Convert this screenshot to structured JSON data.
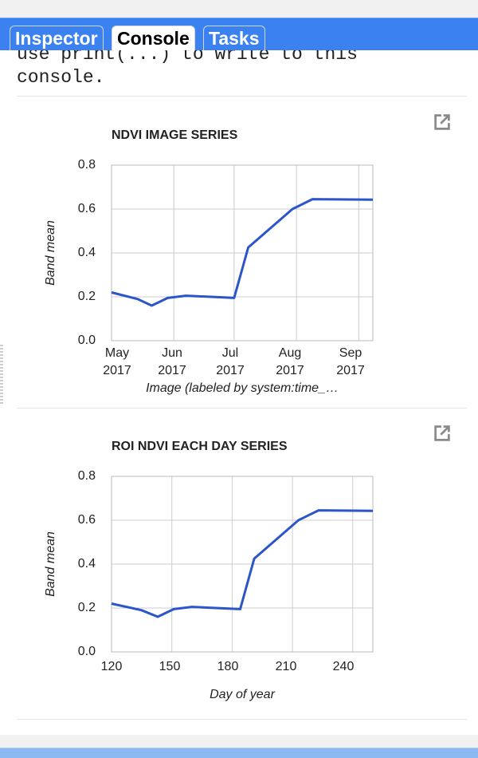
{
  "tabs": [
    {
      "label": "Inspector",
      "active": false
    },
    {
      "label": "Console",
      "active": true
    },
    {
      "label": "Tasks",
      "active": false
    }
  ],
  "console": {
    "lines": [
      "use print(...) to write to this",
      "console."
    ]
  },
  "colors": {
    "tab_bar": "#3b82f0",
    "series_line": "#2b55c8",
    "grid": "#cccccc"
  },
  "popout_icon": "open-in-new-icon",
  "chart_data": [
    {
      "type": "line",
      "title": "NDVI IMAGE SERIES",
      "ylabel": "Band mean",
      "xlabel": "Image (labeled by system:time_…",
      "ylim": [
        0,
        0.8
      ],
      "yticks": [
        "0.0",
        "0.2",
        "0.4",
        "0.6",
        "0.8"
      ],
      "xticks": [
        {
          "month": "May",
          "year": "2017"
        },
        {
          "month": "Jun",
          "year": "2017"
        },
        {
          "month": "Jul",
          "year": "2017"
        },
        {
          "month": "Aug",
          "year": "2017"
        },
        {
          "month": "Sep",
          "year": "2017"
        }
      ],
      "x_range_days": [
        0,
        130
      ],
      "x_tick_days": [
        0,
        31,
        61,
        92,
        123
      ],
      "series": [
        {
          "name": "Band mean",
          "x_days": [
            -2,
            13,
            20,
            28,
            37,
            61,
            68,
            90,
            100,
            130
          ],
          "values": [
            0.22,
            0.19,
            0.16,
            0.195,
            0.205,
            0.195,
            0.425,
            0.6,
            0.645,
            0.643
          ]
        }
      ]
    },
    {
      "type": "line",
      "title": "ROI NDVI EACH DAY SERIES",
      "ylabel": "Band mean",
      "xlabel": "Day of year",
      "ylim": [
        0,
        0.8
      ],
      "yticks": [
        "0.0",
        "0.2",
        "0.4",
        "0.6",
        "0.8"
      ],
      "xlim": [
        120,
        250
      ],
      "xticks": [
        120,
        150,
        180,
        210,
        240
      ],
      "series": [
        {
          "name": "Band mean",
          "x": [
            120,
            135,
            143,
            151,
            160,
            184,
            191,
            213,
            223,
            253
          ],
          "values": [
            0.22,
            0.19,
            0.16,
            0.195,
            0.205,
            0.195,
            0.425,
            0.6,
            0.645,
            0.643
          ]
        }
      ]
    }
  ]
}
